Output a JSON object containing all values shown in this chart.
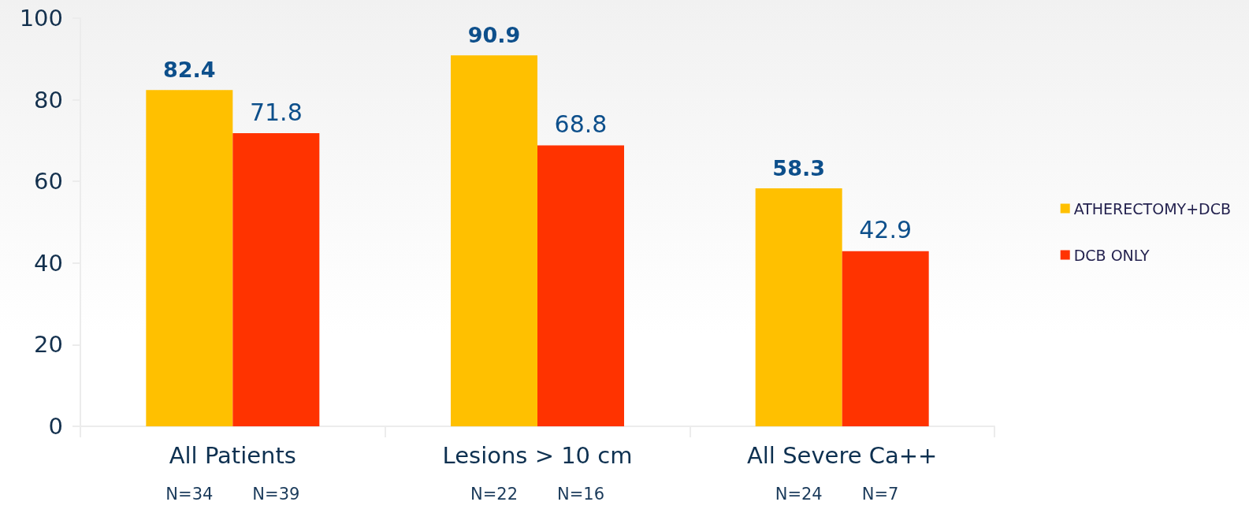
{
  "chart_data": {
    "type": "bar",
    "categories": [
      "All Patients",
      "Lesions > 10 cm",
      "All Severe Ca++"
    ],
    "series": [
      {
        "name": "ATHERECTOMY+DCB",
        "color": "#ffc000",
        "values": [
          82.4,
          90.9,
          58.3
        ]
      },
      {
        "name": "DCB ONLY",
        "color": "#ff3300",
        "values": [
          71.8,
          68.8,
          42.9
        ]
      }
    ],
    "ylim": [
      0,
      100
    ],
    "yticks": [
      0,
      20,
      40,
      60,
      80,
      100
    ],
    "data_labels": true,
    "grid": false,
    "legend": "right",
    "annotations": [
      "N=34",
      "N=39",
      "N=22",
      "N=16",
      "N=24",
      "N=7"
    ]
  }
}
